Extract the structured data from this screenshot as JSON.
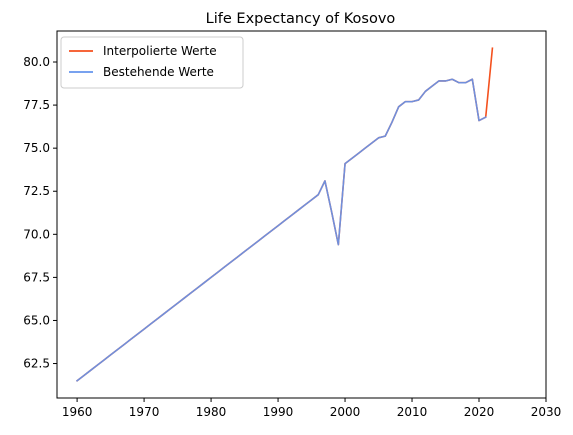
{
  "chart_data": {
    "type": "line",
    "title": "Life Expectancy of Kosovo",
    "xlabel": "",
    "ylabel": "",
    "xlim": [
      1957,
      2030
    ],
    "ylim": [
      60.5,
      81.8
    ],
    "xticks": [
      1960,
      1970,
      1980,
      1990,
      2000,
      2010,
      2020,
      2030
    ],
    "yticks": [
      62.5,
      65.0,
      67.5,
      70.0,
      72.5,
      75.0,
      77.5,
      80.0
    ],
    "grid": false,
    "legend_position": "top-left",
    "series": [
      {
        "name": "Interpolierte Werte",
        "color": "#f4511e",
        "x": [
          1960,
          1961,
          1962,
          1963,
          1964,
          1965,
          1966,
          1967,
          1968,
          1969,
          1970,
          1971,
          1972,
          1973,
          1974,
          1975,
          1976,
          1977,
          1978,
          1979,
          1980,
          1981,
          1982,
          1983,
          1984,
          1985,
          1986,
          1987,
          1988,
          1989,
          1990,
          1991,
          1992,
          1993,
          1994,
          1995,
          1996,
          1997,
          1998,
          1999,
          2000,
          2001,
          2002,
          2003,
          2004,
          2005,
          2006,
          2007,
          2008,
          2009,
          2010,
          2011,
          2012,
          2013,
          2014,
          2015,
          2016,
          2017,
          2018,
          2019,
          2020,
          2021,
          2022
        ],
        "y": [
          61.5,
          61.8,
          62.1,
          62.4,
          62.7,
          63.0,
          63.3,
          63.6,
          63.9,
          64.2,
          64.5,
          64.8,
          65.1,
          65.4,
          65.7,
          66.0,
          66.3,
          66.6,
          66.9,
          67.2,
          67.5,
          67.8,
          68.1,
          68.4,
          68.7,
          69.0,
          69.3,
          69.6,
          69.9,
          70.2,
          70.5,
          70.8,
          71.1,
          71.4,
          71.7,
          72.0,
          72.3,
          73.1,
          71.3,
          69.4,
          74.1,
          74.4,
          74.7,
          75.0,
          75.3,
          75.6,
          75.7,
          76.5,
          77.4,
          77.7,
          77.7,
          77.8,
          78.3,
          78.6,
          78.9,
          78.9,
          79.0,
          78.8,
          78.8,
          79.0,
          76.6,
          76.8,
          80.8
        ]
      },
      {
        "name": "Bestehende Werte",
        "color": "#6495ed",
        "x": [
          1960,
          1961,
          1962,
          1963,
          1964,
          1965,
          1966,
          1967,
          1968,
          1969,
          1970,
          1971,
          1972,
          1973,
          1974,
          1975,
          1976,
          1977,
          1978,
          1979,
          1980,
          1981,
          1982,
          1983,
          1984,
          1985,
          1986,
          1987,
          1988,
          1989,
          1990,
          1991,
          1992,
          1993,
          1994,
          1995,
          1996,
          1997,
          1998,
          1999,
          2000,
          2001,
          2002,
          2003,
          2004,
          2005,
          2006,
          2007,
          2008,
          2009,
          2010,
          2011,
          2012,
          2013,
          2014,
          2015,
          2016,
          2017,
          2018,
          2019,
          2020,
          2021
        ],
        "y": [
          61.5,
          61.8,
          62.1,
          62.4,
          62.7,
          63.0,
          63.3,
          63.6,
          63.9,
          64.2,
          64.5,
          64.8,
          65.1,
          65.4,
          65.7,
          66.0,
          66.3,
          66.6,
          66.9,
          67.2,
          67.5,
          67.8,
          68.1,
          68.4,
          68.7,
          69.0,
          69.3,
          69.6,
          69.9,
          70.2,
          70.5,
          70.8,
          71.1,
          71.4,
          71.7,
          72.0,
          72.3,
          73.1,
          71.3,
          69.4,
          74.1,
          74.4,
          74.7,
          75.0,
          75.3,
          75.6,
          75.7,
          76.5,
          77.4,
          77.7,
          77.7,
          77.8,
          78.3,
          78.6,
          78.9,
          78.9,
          79.0,
          78.8,
          78.8,
          79.0,
          76.6,
          76.8
        ]
      }
    ]
  }
}
